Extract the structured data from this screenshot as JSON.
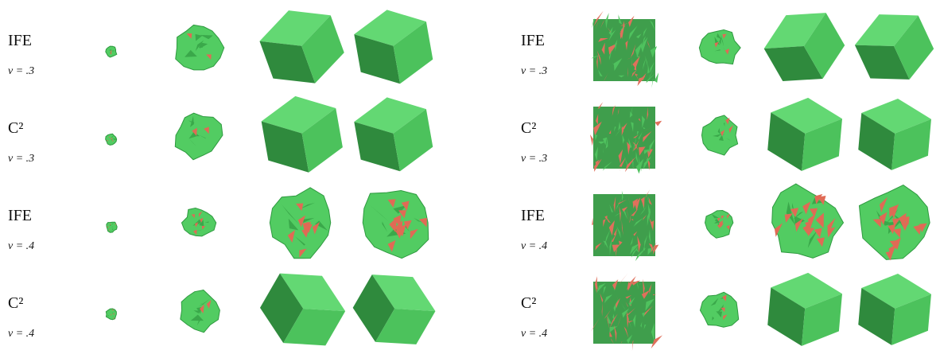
{
  "panels": [
    {
      "rows": [
        {
          "method": "IFE",
          "nu": "ν = .3"
        },
        {
          "method": "C²",
          "nu": "ν = .3"
        },
        {
          "method": "IFE",
          "nu": "ν = .4"
        },
        {
          "method": "C²",
          "nu": "ν = .4"
        }
      ]
    },
    {
      "rows": [
        {
          "method": "IFE",
          "nu": "ν = .3"
        },
        {
          "method": "C²",
          "nu": "ν = .3"
        },
        {
          "method": "IFE",
          "nu": "ν = .4"
        },
        {
          "method": "C²",
          "nu": "ν = .4"
        }
      ]
    }
  ]
}
